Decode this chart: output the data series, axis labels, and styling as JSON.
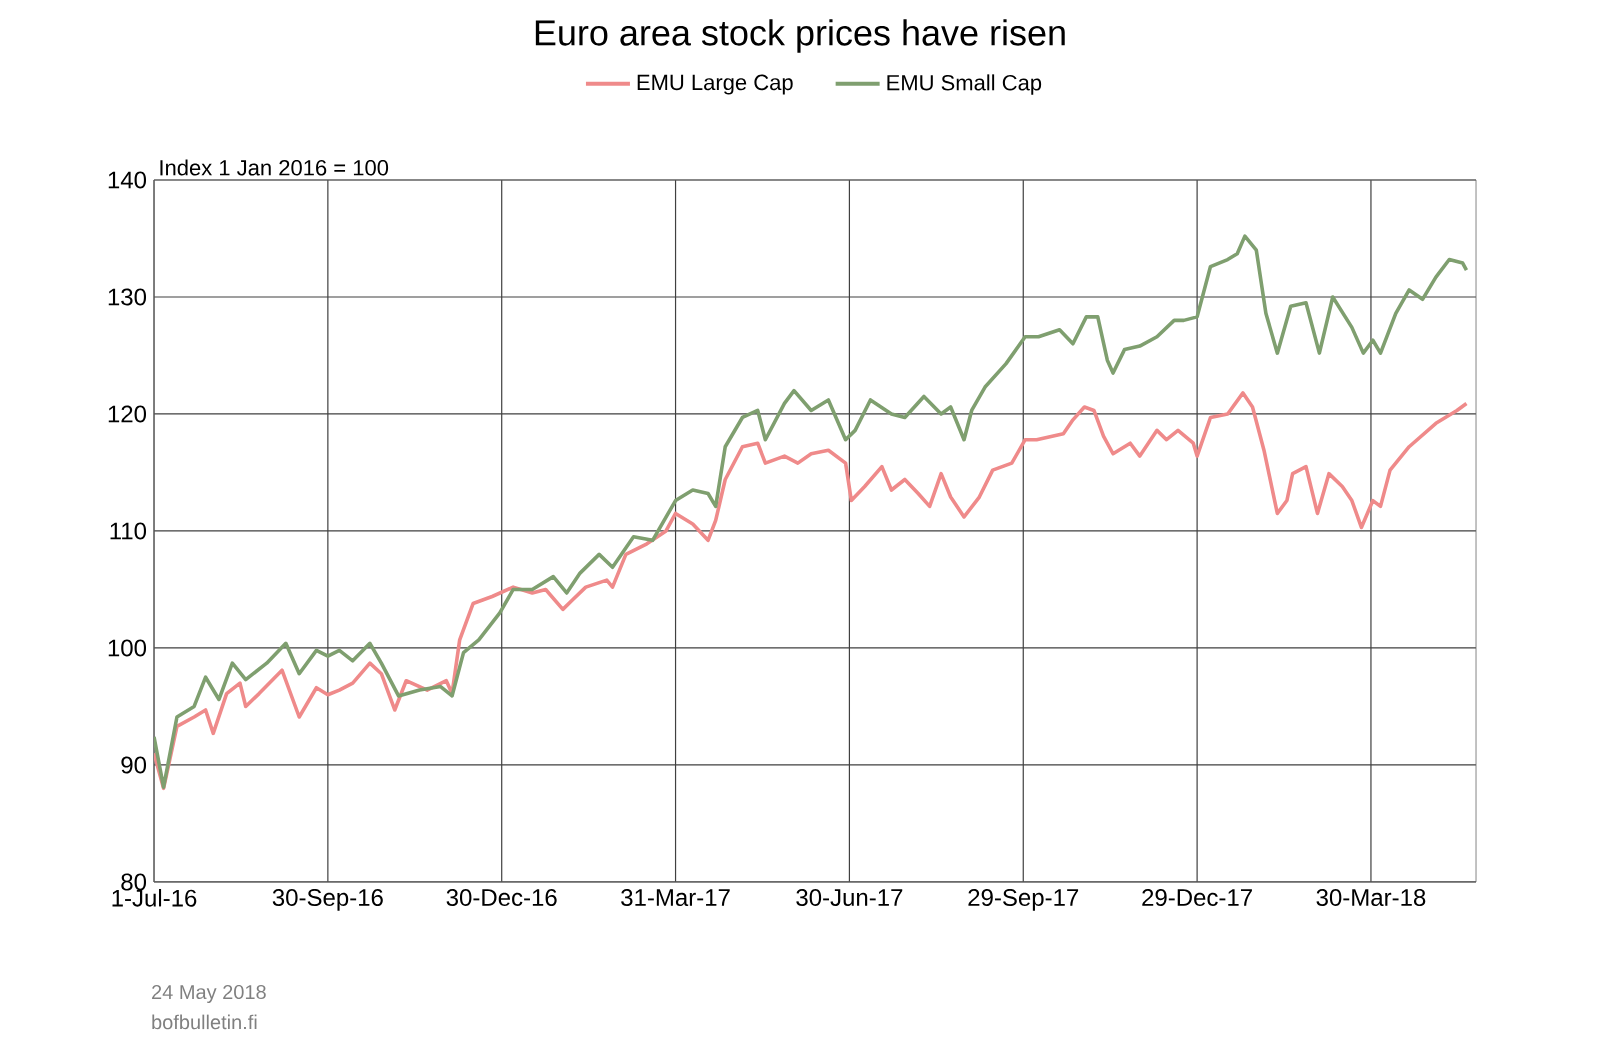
{
  "chart_data": {
    "type": "line",
    "title": "Euro area stock prices have risen",
    "ylabel": "Index 1 Jan 2016 = 100",
    "annotations": [
      "24 May 2018",
      "bofbulletin.fi"
    ],
    "xlim": [
      "2016-07-01",
      "2018-05-24"
    ],
    "xticks": [
      {
        "value": "2016-07-01",
        "label": "1-Jul-16"
      },
      {
        "value": "2016-09-30",
        "label": "30-Sep-16"
      },
      {
        "value": "2016-12-30",
        "label": "30-Dec-16"
      },
      {
        "value": "2017-03-31",
        "label": "31-Mar-17"
      },
      {
        "value": "2017-06-30",
        "label": "30-Jun-17"
      },
      {
        "value": "2017-09-29",
        "label": "29-Sep-17"
      },
      {
        "value": "2017-12-29",
        "label": "29-Dec-17"
      },
      {
        "value": "2018-03-30",
        "label": "30-Mar-18"
      }
    ],
    "ylim": [
      80,
      140
    ],
    "yticks": [
      80,
      90,
      100,
      110,
      120,
      130,
      140
    ],
    "grid": true,
    "legend": "top",
    "line_style": "solid",
    "series": [
      {
        "name": "EMU Large Cap",
        "color": "#ef8a8a",
        "x": [
          "2016-07-01",
          "2016-07-06",
          "2016-07-13",
          "2016-07-22",
          "2016-07-28",
          "2016-08-01",
          "2016-08-08",
          "2016-08-15",
          "2016-08-18",
          "2016-08-25",
          "2016-09-06",
          "2016-09-15",
          "2016-09-24",
          "2016-09-30",
          "2016-10-06",
          "2016-10-13",
          "2016-10-22",
          "2016-10-28",
          "2016-11-04",
          "2016-11-10",
          "2016-11-21",
          "2016-12-01",
          "2016-12-04",
          "2016-12-08",
          "2016-12-15",
          "2016-12-25",
          "2017-01-05",
          "2017-01-15",
          "2017-01-22",
          "2017-01-31",
          "2017-02-05",
          "2017-02-12",
          "2017-02-23",
          "2017-02-26",
          "2017-03-05",
          "2017-03-16",
          "2017-03-26",
          "2017-03-31",
          "2017-04-09",
          "2017-04-17",
          "2017-04-21",
          "2017-04-26",
          "2017-05-05",
          "2017-05-13",
          "2017-05-17",
          "2017-05-27",
          "2017-06-03",
          "2017-06-10",
          "2017-06-19",
          "2017-06-28",
          "2017-07-01",
          "2017-07-08",
          "2017-07-17",
          "2017-07-22",
          "2017-07-29",
          "2017-08-05",
          "2017-08-11",
          "2017-08-17",
          "2017-08-22",
          "2017-08-29",
          "2017-09-06",
          "2017-09-13",
          "2017-09-23",
          "2017-09-30",
          "2017-10-06",
          "2017-10-20",
          "2017-10-25",
          "2017-10-31",
          "2017-11-05",
          "2017-11-10",
          "2017-11-15",
          "2017-11-24",
          "2017-11-29",
          "2017-12-08",
          "2017-12-13",
          "2017-12-19",
          "2017-12-27",
          "2017-12-29",
          "2018-01-05",
          "2018-01-14",
          "2018-01-22",
          "2018-01-27",
          "2018-02-02",
          "2018-02-09",
          "2018-02-14",
          "2018-02-17",
          "2018-02-24",
          "2018-03-02",
          "2018-03-08",
          "2018-03-15",
          "2018-03-20",
          "2018-03-25",
          "2018-03-31",
          "2018-04-04",
          "2018-04-09",
          "2018-04-19",
          "2018-05-03",
          "2018-05-14",
          "2018-05-19"
        ],
        "values": [
          91,
          88,
          93.3,
          94.1,
          94.7,
          92.7,
          96.1,
          97,
          95,
          96.1,
          98.1,
          94.1,
          96.6,
          96,
          96.4,
          97,
          98.7,
          97.8,
          94.7,
          97.2,
          96.4,
          97.2,
          96.1,
          100.7,
          103.8,
          104.4,
          105.2,
          104.7,
          105,
          103.3,
          104.1,
          105.2,
          105.8,
          105.2,
          108,
          108.9,
          110,
          111.5,
          110.6,
          109.2,
          110.9,
          114.4,
          117.2,
          117.5,
          115.8,
          116.4,
          115.8,
          116.6,
          116.9,
          115.8,
          112.6,
          113.8,
          115.5,
          113.5,
          114.4,
          113.2,
          112.1,
          114.9,
          112.9,
          111.2,
          112.9,
          115.2,
          115.8,
          117.8,
          117.8,
          118.3,
          119.5,
          120.6,
          120.3,
          118.1,
          116.6,
          117.5,
          116.4,
          118.6,
          117.8,
          118.6,
          117.5,
          116.4,
          119.7,
          120,
          121.8,
          120.6,
          116.9,
          111.5,
          112.6,
          114.9,
          115.5,
          111.5,
          114.9,
          113.8,
          112.6,
          110.3,
          112.6,
          112.1,
          115.2,
          117.2,
          119.2,
          120.3,
          120.9
        ]
      },
      {
        "name": "EMU Small Cap",
        "color": "#7f9f6f",
        "x": [
          "2016-07-01",
          "2016-07-06",
          "2016-07-13",
          "2016-07-22",
          "2016-07-28",
          "2016-08-04",
          "2016-08-11",
          "2016-08-18",
          "2016-08-29",
          "2016-09-08",
          "2016-09-15",
          "2016-09-24",
          "2016-09-30",
          "2016-10-06",
          "2016-10-13",
          "2016-10-22",
          "2016-10-28",
          "2016-11-06",
          "2016-11-17",
          "2016-11-28",
          "2016-12-04",
          "2016-12-10",
          "2016-12-18",
          "2016-12-29",
          "2017-01-05",
          "2017-01-15",
          "2017-01-26",
          "2017-02-02",
          "2017-02-09",
          "2017-02-19",
          "2017-02-26",
          "2017-03-09",
          "2017-03-19",
          "2017-03-31",
          "2017-04-09",
          "2017-04-17",
          "2017-04-21",
          "2017-04-26",
          "2017-05-05",
          "2017-05-13",
          "2017-05-17",
          "2017-05-27",
          "2017-06-01",
          "2017-06-10",
          "2017-06-19",
          "2017-06-28",
          "2017-07-03",
          "2017-07-11",
          "2017-07-22",
          "2017-07-29",
          "2017-08-08",
          "2017-08-17",
          "2017-08-22",
          "2017-08-29",
          "2017-09-02",
          "2017-09-09",
          "2017-09-20",
          "2017-09-30",
          "2017-10-07",
          "2017-10-18",
          "2017-10-25",
          "2017-11-01",
          "2017-11-07",
          "2017-11-12",
          "2017-11-15",
          "2017-11-21",
          "2017-11-29",
          "2017-12-08",
          "2017-12-17",
          "2017-12-22",
          "2017-12-29",
          "2018-01-05",
          "2018-01-14",
          "2018-01-19",
          "2018-01-23",
          "2018-01-29",
          "2018-02-03",
          "2018-02-09",
          "2018-02-16",
          "2018-02-24",
          "2018-03-03",
          "2018-03-10",
          "2018-03-20",
          "2018-03-26",
          "2018-03-31",
          "2018-04-04",
          "2018-04-12",
          "2018-04-19",
          "2018-04-26",
          "2018-05-03",
          "2018-05-10",
          "2018-05-17",
          "2018-05-19"
        ],
        "values": [
          92.4,
          88.1,
          94.1,
          95,
          97.5,
          95.6,
          98.7,
          97.3,
          98.7,
          100.4,
          97.8,
          99.8,
          99.3,
          99.8,
          98.9,
          100.4,
          98.7,
          95.9,
          96.4,
          96.7,
          95.9,
          99.6,
          100.7,
          103,
          105,
          105,
          106.1,
          104.7,
          106.4,
          108,
          106.9,
          109.5,
          109.2,
          112.6,
          113.5,
          113.2,
          112.1,
          117.2,
          119.7,
          120.3,
          117.8,
          120.9,
          122,
          120.3,
          121.2,
          117.8,
          118.6,
          121.2,
          120,
          119.7,
          121.5,
          120,
          120.6,
          117.8,
          120.3,
          122.3,
          124.3,
          126.6,
          126.6,
          127.2,
          126,
          128.3,
          128.3,
          124.6,
          123.5,
          125.5,
          125.8,
          126.6,
          128,
          128,
          128.3,
          132.6,
          133.2,
          133.7,
          135.2,
          134,
          128.6,
          125.2,
          129.2,
          129.5,
          125.2,
          130,
          127.4,
          125.2,
          126.3,
          125.2,
          128.6,
          130.6,
          129.8,
          131.7,
          133.2,
          132.9,
          132.3
        ]
      }
    ]
  }
}
